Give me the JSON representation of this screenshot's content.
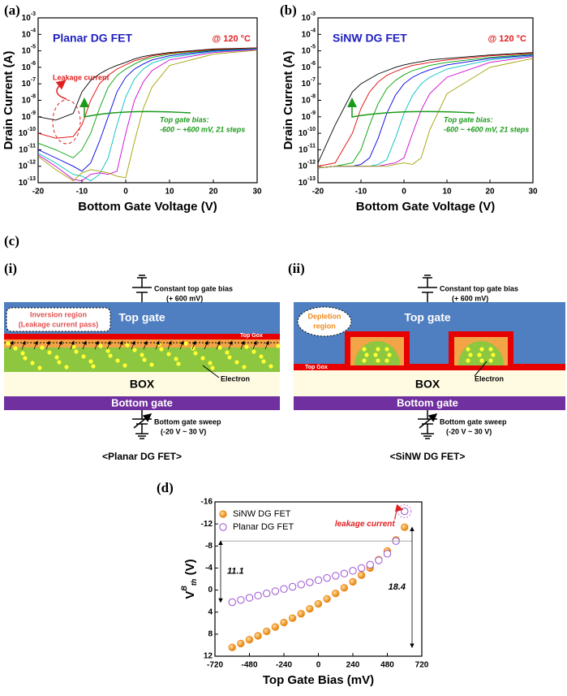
{
  "chart_data": [
    {
      "type": "line",
      "panel": "(a)",
      "title": "Planar DG FET",
      "temperature": "@ 120 °C",
      "xlabel": "Bottom Gate Voltage (V)",
      "ylabel": "Drain Current (A)",
      "annotations": [
        "Leakage current",
        "Top gate bias:",
        "-600 ~ +600 mV, 21 steps"
      ],
      "yscale": "log",
      "xlim": [
        -20,
        30
      ],
      "ylim": [
        1e-13,
        0.001
      ],
      "xticks": [
        -20,
        -10,
        0,
        10,
        20,
        30
      ],
      "yticks": [
        {
          "value": 1e-13,
          "label": "10-13"
        },
        {
          "value": 1e-12,
          "label": "10-12"
        },
        {
          "value": 1e-11,
          "label": "10-11"
        },
        {
          "value": 1e-10,
          "label": "10-10"
        },
        {
          "value": 1e-09,
          "label": "10-9"
        },
        {
          "value": 1e-08,
          "label": "10-8"
        },
        {
          "value": 1e-07,
          "label": "10-7"
        },
        {
          "value": 1e-06,
          "label": "10-6"
        },
        {
          "value": 1e-05,
          "label": "10-5"
        },
        {
          "value": 0.0001,
          "label": "10-4"
        },
        {
          "value": 0.001,
          "label": "10-3"
        }
      ],
      "x": [
        -20,
        -16,
        -12,
        -10,
        -8,
        -6,
        -4,
        -2,
        0,
        2,
        4,
        6,
        10,
        20,
        30
      ],
      "series": [
        {
          "color": "#000000",
          "values": [
            1e-09,
            6.3e-10,
            1.6e-09,
            3.2e-08,
            1.6e-07,
            4e-07,
            7.9e-07,
            1.3e-06,
            2e-06,
            3.2e-06,
            4.5e-06,
            5.6e-06,
            7.9e-06,
            1.3e-05,
            1.5e-05
          ]
        },
        {
          "color": "#e00000",
          "values": [
            1e-10,
            5e-11,
            6.3e-11,
            3.2e-10,
            1e-08,
            1e-07,
            3.2e-07,
            7.9e-07,
            1.4e-06,
            2.5e-06,
            3.5e-06,
            5e-06,
            7.1e-06,
            1.2e-05,
            1.5e-05
          ]
        },
        {
          "color": "#00a000",
          "values": [
            2.5e-11,
            1e-11,
            3.2e-12,
            1e-11,
            1e-10,
            3.2e-09,
            6.3e-08,
            3.2e-07,
            7.9e-07,
            1.6e-06,
            2.8e-06,
            4e-06,
            6.3e-06,
            1.1e-05,
            1.4e-05
          ]
        },
        {
          "color": "#0000e0",
          "values": [
            1e-11,
            3.2e-12,
            1e-12,
            5e-13,
            1.6e-12,
            3.2e-11,
            1e-09,
            3.2e-08,
            2.5e-07,
            7.9e-07,
            1.6e-06,
            2.8e-06,
            5e-06,
            1e-05,
            1.35e-05
          ]
        },
        {
          "color": "#00c0c0",
          "values": [
            6.3e-12,
            1.6e-12,
            3.2e-13,
            2.5e-13,
            1.3e-13,
            3.2e-13,
            3.2e-12,
            3.2e-10,
            1.6e-08,
            2e-07,
            7.9e-07,
            1.8e-06,
            4e-06,
            8.9e-06,
            1.3e-05
          ]
        },
        {
          "color": "#d000d0",
          "values": [
            5e-12,
            1e-12,
            1.6e-13,
            1.3e-13,
            3.2e-13,
            4e-13,
            3.2e-13,
            5e-13,
            1e-10,
            1e-08,
            1.3e-07,
            6.3e-07,
            2.8e-06,
            7.9e-06,
            1.2e-05
          ]
        },
        {
          "color": "#a0a000",
          "values": [
            4e-12,
            6.3e-13,
            1.3e-13,
            4e-13,
            6.3e-13,
            5e-13,
            4e-13,
            2.5e-13,
            2e-13,
            3.2e-11,
            3.2e-09,
            6.3e-08,
            1.3e-06,
            6.3e-06,
            1.1e-05
          ]
        }
      ]
    },
    {
      "type": "line",
      "panel": "(b)",
      "title": "SiNW DG FET",
      "temperature": "@ 120 °C",
      "xlabel": "Bottom Gate Voltage (V)",
      "ylabel": "Drain Current (A)",
      "annotations": [
        "Top gate bias:",
        "-600 ~ +600 mV, 21 steps"
      ],
      "yscale": "log",
      "xlim": [
        -20,
        30
      ],
      "ylim": [
        1e-13,
        0.001
      ],
      "xticks": [
        -20,
        -10,
        0,
        10,
        20,
        30
      ],
      "yticks": [
        {
          "value": 1e-13,
          "label": "10-13"
        },
        {
          "value": 1e-12,
          "label": "10-12"
        },
        {
          "value": 1e-11,
          "label": "10-11"
        },
        {
          "value": 1e-10,
          "label": "10-10"
        },
        {
          "value": 1e-09,
          "label": "10-9"
        },
        {
          "value": 1e-08,
          "label": "10-8"
        },
        {
          "value": 1e-07,
          "label": "10-7"
        },
        {
          "value": 1e-06,
          "label": "10-6"
        },
        {
          "value": 1e-05,
          "label": "10-5"
        },
        {
          "value": 0.0001,
          "label": "10-4"
        },
        {
          "value": 0.001,
          "label": "10-3"
        }
      ],
      "x": [
        -20,
        -16,
        -12,
        -10,
        -8,
        -6,
        -4,
        -2,
        0,
        2,
        4,
        6,
        10,
        20,
        30
      ],
      "series": [
        {
          "color": "#000000",
          "values": [
            1.6e-12,
            3.2e-10,
            3.2e-08,
            1e-07,
            2e-07,
            4e-07,
            6.3e-07,
            1e-06,
            1.4e-06,
            1.8e-06,
            2.2e-06,
            2.8e-06,
            3.5e-06,
            5.6e-06,
            7.9e-06
          ]
        },
        {
          "color": "#e00000",
          "values": [
            1e-12,
            1.6e-12,
            1e-10,
            3.2e-09,
            3.2e-08,
            1.3e-07,
            3.2e-07,
            5.6e-07,
            8.9e-07,
            1.3e-06,
            1.6e-06,
            2e-06,
            2.8e-06,
            5e-06,
            7.1e-06
          ]
        },
        {
          "color": "#00a000",
          "values": [
            7.9e-13,
            1e-12,
            1.6e-12,
            1e-11,
            3.2e-10,
            6.3e-09,
            5e-08,
            1.6e-07,
            3.5e-07,
            6.3e-07,
            8.9e-07,
            1.3e-06,
            2e-06,
            4e-06,
            6.3e-06
          ]
        },
        {
          "color": "#0000e0",
          "values": [
            7.9e-13,
            1e-12,
            1e-12,
            1.3e-12,
            3.2e-12,
            5e-11,
            1.6e-09,
            2e-08,
            1e-07,
            2.5e-07,
            4.5e-07,
            7.1e-07,
            1.4e-06,
            3.5e-06,
            5.6e-06
          ]
        },
        {
          "color": "#00c0c0",
          "values": [
            7.9e-13,
            1e-12,
            1e-12,
            1e-12,
            1e-12,
            1.3e-12,
            2.5e-12,
            5e-11,
            1.6e-09,
            2e-08,
            1e-07,
            2.5e-07,
            7.9e-07,
            2.8e-06,
            5e-06
          ]
        },
        {
          "color": "#d000d0",
          "values": [
            7.9e-13,
            1e-12,
            1e-12,
            1e-12,
            1e-12,
            1e-12,
            1.3e-12,
            1.6e-12,
            3.2e-12,
            1e-10,
            2.5e-09,
            2.5e-08,
            2.5e-07,
            2e-06,
            4.5e-06
          ]
        },
        {
          "color": "#a0a000",
          "values": [
            7.9e-13,
            1e-12,
            1e-12,
            1e-12,
            1e-12,
            1e-12,
            1e-12,
            1.3e-12,
            1.6e-12,
            1.3e-12,
            3.2e-12,
            1.6e-10,
            2.5e-08,
            1e-06,
            3.5e-06
          ]
        }
      ]
    },
    {
      "type": "scatter",
      "panel": "(d)",
      "xlabel": "Top Gate Bias (mV)",
      "ylabel": {
        "main": "V",
        "sup": "B",
        "sub": "th",
        "unit": " (V)"
      },
      "annotations": [
        "leakage current",
        "11.1",
        "18.4"
      ],
      "legend": "upper left",
      "xlim": [
        -720,
        720
      ],
      "ylim": [
        -16,
        12
      ],
      "y_inverted": true,
      "xticks": [
        -720,
        -480,
        -240,
        0,
        240,
        480,
        720
      ],
      "yticks": [
        -16,
        -12,
        -8,
        -4,
        0,
        4,
        8,
        12
      ],
      "x": [
        -600,
        -540,
        -480,
        -420,
        -360,
        -300,
        -240,
        -180,
        -120,
        -60,
        0,
        60,
        120,
        180,
        240,
        300,
        360,
        420,
        480,
        540,
        600
      ],
      "series": [
        {
          "name": "SiNW DG FET",
          "color": "#f08c1e",
          "marker": "filled",
          "values": [
            10.4,
            9.7,
            9.0,
            8.3,
            7.5,
            6.7,
            5.9,
            5.1,
            4.3,
            3.4,
            2.5,
            1.6,
            0.6,
            -0.4,
            -1.5,
            -2.7,
            -4.0,
            -5.5,
            -7.1,
            -9.1,
            -11.4
          ]
        },
        {
          "name": "Planar DG FET",
          "color": "#9a4fd0",
          "marker": "open",
          "values": [
            2.2,
            1.8,
            1.4,
            1.0,
            0.6,
            0.2,
            -0.2,
            -0.6,
            -1.0,
            -1.4,
            -1.8,
            -2.2,
            -2.6,
            -3.0,
            -3.5,
            -4.0,
            -4.6,
            -5.4,
            -6.6,
            -8.9,
            -14.3
          ]
        }
      ]
    }
  ],
  "diagram": {
    "panel": "(c)",
    "planar": {
      "tag": "(i)",
      "top_bias": "Constant top gate bias",
      "top_bias_value": "(+ 600 mV)",
      "top_gate": "Top gate",
      "region": "Inversion region",
      "region_note": "(Leakage current pass)",
      "gox": "Top Gox",
      "electron": "Electron",
      "box": "BOX",
      "bottom_gate": "Bottom gate",
      "sweep": "Bottom gate sweep",
      "sweep_range": "(-20 V ~ 30 V)",
      "caption": "<Planar DG FET>"
    },
    "sinw": {
      "tag": "(ii)",
      "top_bias": "Constant top gate bias",
      "top_bias_value": "(+ 600 mV)",
      "top_gate": "Top gate",
      "region": "Depletion",
      "region_note": "region",
      "gox": "Top Gox",
      "electron": "Electron",
      "box": "BOX",
      "bottom_gate": "Bottom gate",
      "sweep": "Bottom gate sweep",
      "sweep_range": "(-20 V ~ 30 V)",
      "caption": "<SiNW DG FET>"
    }
  }
}
